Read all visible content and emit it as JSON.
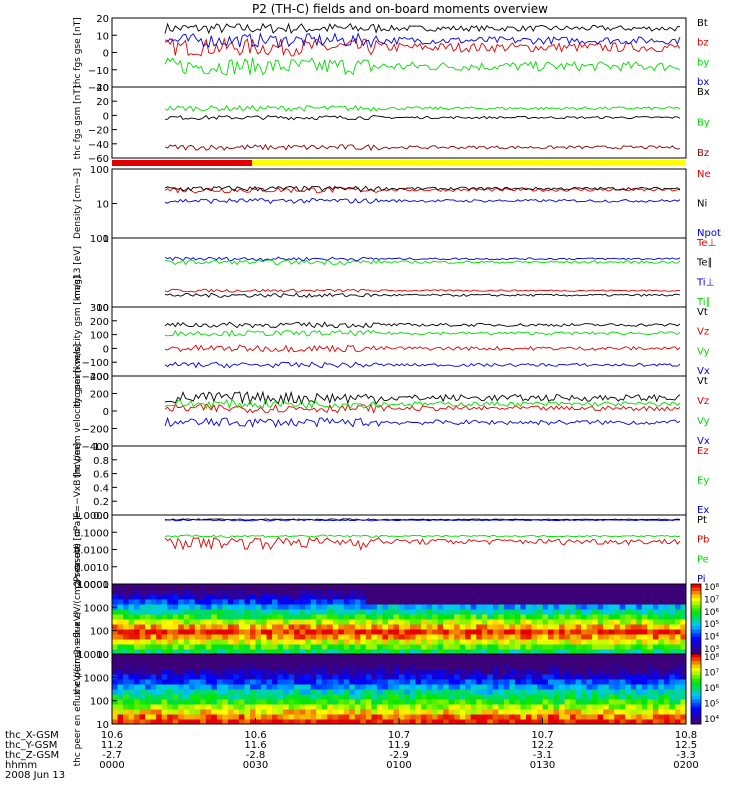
{
  "title": "P2 (TH-C) fields and on-board moments overview",
  "colors": {
    "black": "#000000",
    "red": "#e00000",
    "green": "#00dd00",
    "blue": "#0000dd",
    "darkred": "#8b0000",
    "yellow": "#ffff00"
  },
  "chart_data": [
    {
      "type": "line",
      "ylabel": "thc fgs gse [nT]",
      "ylim": [
        -20,
        20
      ],
      "yticks": [
        "20",
        "10",
        "0",
        "−10",
        "−20"
      ],
      "legend": [
        {
          "name": "Bt",
          "color": "black",
          "base": 14,
          "amp": 3
        },
        {
          "name": "bz",
          "color": "red",
          "base": 3,
          "amp": 5
        },
        {
          "name": "by",
          "color": "green",
          "base": -8,
          "amp": 5
        },
        {
          "name": "bx",
          "color": "blue",
          "base": 7,
          "amp": 4
        }
      ]
    },
    {
      "type": "line",
      "ylabel": "thc fgs gsm [nT]",
      "ylim": [
        -60,
        40
      ],
      "yticks": [
        "40",
        "20",
        "0",
        "−20",
        "−40",
        "−60"
      ],
      "legend": [
        {
          "name": "Bx",
          "color": "black",
          "base": -3,
          "amp": 3
        },
        {
          "name": "By",
          "color": "green",
          "base": 10,
          "amp": 4
        },
        {
          "name": "Bz",
          "color": "darkred",
          "base": -45,
          "amp": 4
        }
      ]
    },
    {
      "type": "line",
      "ylabel": "Density [cm−3]",
      "log": true,
      "ylim": [
        1,
        100
      ],
      "yticks": [
        "100",
        "10",
        "1"
      ],
      "legend": [
        {
          "name": "Ne",
          "color": "red",
          "base": 25,
          "amp": 5
        },
        {
          "name": "Ni",
          "color": "black",
          "base": 27,
          "amp": 5
        },
        {
          "name": "Npot",
          "color": "blue",
          "base": 12,
          "amp": 2
        }
      ]
    },
    {
      "type": "line",
      "ylabel": "mag13 [eV]",
      "log": true,
      "ylim": [
        10,
        1000
      ],
      "yticks": [
        "100",
        "10"
      ],
      "legend": [
        {
          "name": "Te⊥",
          "color": "red",
          "base": 30,
          "amp": 3
        },
        {
          "name": "Te∥",
          "color": "black",
          "base": 22,
          "amp": 3
        },
        {
          "name": "Ti⊥",
          "color": "blue",
          "base": 250,
          "amp": 30
        },
        {
          "name": "Ti∥",
          "color": "green",
          "base": 200,
          "amp": 30
        }
      ]
    },
    {
      "type": "line",
      "ylabel": "thc peim velocity gsm [km/s]",
      "ylim": [
        -200,
        300
      ],
      "yticks": [
        "300",
        "200",
        "100",
        "0",
        "−100",
        "−200"
      ],
      "legend": [
        {
          "name": "Vt",
          "color": "black",
          "base": 170,
          "amp": 20
        },
        {
          "name": "Vz",
          "color": "red",
          "base": 0,
          "amp": 25
        },
        {
          "name": "Vy",
          "color": "green",
          "base": 110,
          "amp": 20
        },
        {
          "name": "Vx",
          "color": "blue",
          "base": -120,
          "amp": 20
        }
      ]
    },
    {
      "type": "line",
      "ylabel": "thc peem velocity gsm [km/s]",
      "ylim": [
        -400,
        400
      ],
      "yticks": [
        "400",
        "200",
        "0",
        "−200",
        "−400"
      ],
      "legend": [
        {
          "name": "Vt",
          "color": "black",
          "base": 150,
          "amp": 70
        },
        {
          "name": "Vz",
          "color": "red",
          "base": 30,
          "amp": 50
        },
        {
          "name": "Vy",
          "color": "green",
          "base": 80,
          "amp": 50
        },
        {
          "name": "Vx",
          "color": "blue",
          "base": -130,
          "amp": 50
        }
      ]
    },
    {
      "type": "line",
      "ylabel": "E=−VxB [mV/m]",
      "ylim": [
        0,
        1
      ],
      "yticks": [
        "1.0",
        "0.8",
        "0.6",
        "0.4",
        "0.2",
        "0.0"
      ],
      "legend": [
        {
          "name": "Ez",
          "color": "red"
        },
        {
          "name": "Ey",
          "color": "green"
        },
        {
          "name": "Ex",
          "color": "blue"
        }
      ]
    },
    {
      "type": "line",
      "ylabel": "Pressure [nPa]",
      "log": true,
      "ylim": [
        0.0001,
        1
      ],
      "yticks": [
        "1.0000",
        "0.1000",
        "0.0100",
        "0.0010",
        "0.0001"
      ],
      "legend": [
        {
          "name": "Pt",
          "color": "black",
          "base": 0.55,
          "amp": 0.05
        },
        {
          "name": "Pb",
          "color": "red",
          "base": 0.03,
          "amp": 0.02
        },
        {
          "name": "Pe",
          "color": "green",
          "base": 0.06,
          "amp": 0.01
        },
        {
          "name": "Pi",
          "color": "blue",
          "base": 0.5,
          "amp": 0.05
        }
      ]
    },
    {
      "type": "heatmap",
      "ylabel": "thc peir en eflux eV/(cm2-s-sr-eV)",
      "log": true,
      "ylim": [
        10,
        20000
      ],
      "yticks": [
        "10000",
        "1000",
        "100",
        "10"
      ],
      "colorbar": {
        "min": 3,
        "max": 8,
        "labels": [
          "10⁸",
          "10⁷",
          "10⁶",
          "10⁵",
          "10⁴",
          "10³"
        ]
      }
    },
    {
      "type": "heatmap",
      "ylabel": "thc peer en eflux eV/(cm2-s-sr-eV)",
      "log": true,
      "ylim": [
        10,
        20000
      ],
      "yticks": [
        "10000",
        "1000",
        "100",
        "10"
      ],
      "colorbar": {
        "min": 4,
        "max": 8,
        "labels": [
          "10⁸",
          "10⁷",
          "10⁶",
          "10⁵",
          "10⁴"
        ]
      }
    }
  ],
  "x_axis": {
    "rows": [
      {
        "label": "thc_X-GSM",
        "values": [
          "10.6",
          "10.6",
          "10.7",
          "10.7",
          "10.8"
        ]
      },
      {
        "label": "thc_Y-GSM",
        "values": [
          "11.2",
          "11.6",
          "11.9",
          "12.2",
          "12.5"
        ]
      },
      {
        "label": "thc_Z-GSM",
        "values": [
          "-2.7",
          "-2.8",
          "-2.9",
          "-3.1",
          "-3.3"
        ]
      },
      {
        "label": "hhmm",
        "values": [
          "0000",
          "0030",
          "0100",
          "0130",
          "0200"
        ]
      }
    ],
    "date": "2008 Jun 13"
  }
}
